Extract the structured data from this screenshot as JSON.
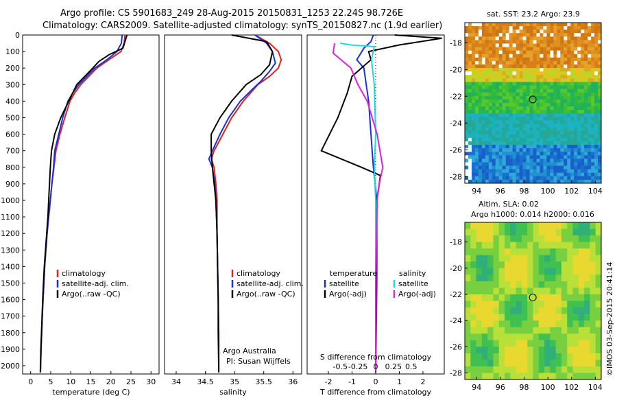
{
  "title_line1": "Argo profile: CS 5901683_249 28-Aug-2015 20150831_1253 22.24S 98.726E",
  "title_line2": "Climatology: CARS2009. Satellite-adjusted climatology: synTS_20150827.nc (1.9d earlier)",
  "watermark": "©IMOS 03-Sep-2015 20:41:14",
  "colors": {
    "climatology": "#e02020",
    "satellite": "#1a2fd8",
    "argo": "#000000",
    "sal_sat": "#20d8e8",
    "sal_argo": "#e020e0"
  },
  "chart_data": [
    {
      "type": "line",
      "id": "temperature",
      "xlabel": "temperature (deg C)",
      "xlim": [
        -2,
        32
      ],
      "ylim": [
        2050,
        0
      ],
      "xticks": [
        "0",
        "5",
        "10",
        "15",
        "20",
        "25",
        "30"
      ],
      "xtick_values": [
        0,
        5,
        10,
        15,
        20,
        25,
        30
      ],
      "yticks": [
        "0",
        "100",
        "200",
        "300",
        "400",
        "500",
        "600",
        "700",
        "800",
        "900",
        "1000",
        "1100",
        "1200",
        "1300",
        "1400",
        "1500",
        "1600",
        "1700",
        "1800",
        "1900",
        "2000"
      ],
      "ytick_values": [
        0,
        100,
        200,
        300,
        400,
        500,
        600,
        700,
        800,
        900,
        1000,
        1100,
        1200,
        1300,
        1400,
        1500,
        1600,
        1700,
        1800,
        1900,
        2000
      ],
      "legend": [
        "climatology",
        "satellite-adj. clim.",
        "Argo(..raw -QC)"
      ],
      "series": [
        {
          "name": "climatology",
          "color_key": "climatology",
          "points": [
            [
              23.5,
              0
            ],
            [
              23.3,
              50
            ],
            [
              22.5,
              100
            ],
            [
              19.5,
              150
            ],
            [
              16.5,
              200
            ],
            [
              14.5,
              250
            ],
            [
              12.5,
              300
            ],
            [
              11,
              350
            ],
            [
              9.8,
              400
            ],
            [
              8.5,
              500
            ],
            [
              7.3,
              600
            ],
            [
              6.3,
              700
            ],
            [
              5.8,
              800
            ],
            [
              5.3,
              900
            ],
            [
              4.9,
              1000
            ],
            [
              4.5,
              1100
            ],
            [
              4.1,
              1200
            ],
            [
              3.8,
              1300
            ],
            [
              3.5,
              1400
            ],
            [
              3.3,
              1500
            ],
            [
              3.1,
              1600
            ],
            [
              2.9,
              1700
            ],
            [
              2.75,
              1800
            ],
            [
              2.6,
              1900
            ],
            [
              2.5,
              2000
            ],
            [
              2.45,
              2040
            ]
          ]
        },
        {
          "name": "satellite-adj. clim.",
          "color_key": "satellite",
          "points": [
            [
              22.8,
              0
            ],
            [
              22.6,
              50
            ],
            [
              21.5,
              100
            ],
            [
              19,
              150
            ],
            [
              16,
              200
            ],
            [
              14,
              250
            ],
            [
              12,
              300
            ],
            [
              10.5,
              350
            ],
            [
              9.3,
              400
            ],
            [
              8,
              500
            ],
            [
              7,
              600
            ],
            [
              6,
              700
            ],
            [
              5.7,
              800
            ],
            [
              5.3,
              900
            ],
            [
              4.9,
              1000
            ],
            [
              4.5,
              1100
            ],
            [
              4.1,
              1200
            ],
            [
              3.8,
              1300
            ],
            [
              3.5,
              1400
            ],
            [
              3.3,
              1500
            ],
            [
              3.1,
              1600
            ],
            [
              2.9,
              1700
            ],
            [
              2.75,
              1800
            ],
            [
              2.6,
              1900
            ],
            [
              2.5,
              2000
            ],
            [
              2.45,
              2040
            ]
          ]
        },
        {
          "name": "Argo(..raw -QC)",
          "color_key": "argo",
          "points": [
            [
              24,
              0
            ],
            [
              23.5,
              40
            ],
            [
              23,
              80
            ],
            [
              19.5,
              120
            ],
            [
              17,
              160
            ],
            [
              15.5,
              200
            ],
            [
              13.5,
              250
            ],
            [
              11.5,
              300
            ],
            [
              9.5,
              400
            ],
            [
              7.5,
              500
            ],
            [
              6,
              600
            ],
            [
              5.2,
              700
            ],
            [
              4.9,
              800
            ],
            [
              4.7,
              900
            ],
            [
              4.5,
              1000
            ],
            [
              4.3,
              1100
            ],
            [
              4.0,
              1200
            ],
            [
              3.7,
              1300
            ],
            [
              3.4,
              1400
            ],
            [
              3.2,
              1500
            ],
            [
              3.0,
              1600
            ],
            [
              2.85,
              1700
            ],
            [
              2.7,
              1800
            ],
            [
              2.55,
              1900
            ],
            [
              2.45,
              2000
            ],
            [
              2.4,
              2040
            ]
          ]
        }
      ]
    },
    {
      "type": "line",
      "id": "salinity",
      "xlabel": "salinity",
      "xlim": [
        33.8,
        36.15
      ],
      "ylim": [
        2050,
        0
      ],
      "xticks": [
        "34",
        "34.5",
        "35",
        "35.5",
        "36"
      ],
      "xtick_values": [
        34,
        34.5,
        35,
        35.5,
        36
      ],
      "legend": [
        "climatology",
        "satellite-adj. clim.",
        "Argo(..raw -QC)"
      ],
      "annotation": [
        "Argo Australia",
        "PI: Susan Wijffels"
      ],
      "series": [
        {
          "name": "climatology",
          "color_key": "climatology",
          "points": [
            [
              35.35,
              0
            ],
            [
              35.6,
              50
            ],
            [
              35.75,
              100
            ],
            [
              35.8,
              150
            ],
            [
              35.75,
              200
            ],
            [
              35.6,
              250
            ],
            [
              35.4,
              300
            ],
            [
              35.15,
              400
            ],
            [
              34.95,
              500
            ],
            [
              34.8,
              600
            ],
            [
              34.65,
              700
            ],
            [
              34.6,
              750
            ],
            [
              34.65,
              800
            ],
            [
              34.68,
              900
            ],
            [
              34.7,
              1000
            ],
            [
              34.7,
              1200
            ],
            [
              34.71,
              1400
            ],
            [
              34.72,
              1600
            ],
            [
              34.73,
              1800
            ],
            [
              34.73,
              2040
            ]
          ]
        },
        {
          "name": "satellite-adj. clim.",
          "color_key": "satellite",
          "points": [
            [
              35.35,
              0
            ],
            [
              35.55,
              50
            ],
            [
              35.65,
              100
            ],
            [
              35.7,
              170
            ],
            [
              35.6,
              220
            ],
            [
              35.45,
              280
            ],
            [
              35.3,
              330
            ],
            [
              35.1,
              400
            ],
            [
              34.9,
              500
            ],
            [
              34.75,
              600
            ],
            [
              34.62,
              700
            ],
            [
              34.56,
              750
            ],
            [
              34.62,
              800
            ],
            [
              34.66,
              900
            ],
            [
              34.68,
              1000
            ],
            [
              34.7,
              1200
            ],
            [
              34.71,
              1400
            ],
            [
              34.72,
              1600
            ],
            [
              34.73,
              1800
            ],
            [
              34.73,
              2040
            ]
          ]
        },
        {
          "name": "Argo(..raw -QC)",
          "color_key": "argo",
          "points": [
            [
              34.95,
              0
            ],
            [
              35.55,
              40
            ],
            [
              35.65,
              100
            ],
            [
              35.6,
              180
            ],
            [
              35.45,
              240
            ],
            [
              35.2,
              300
            ],
            [
              34.95,
              400
            ],
            [
              34.75,
              500
            ],
            [
              34.6,
              600
            ],
            [
              34.6,
              700
            ],
            [
              34.62,
              800
            ],
            [
              34.65,
              900
            ],
            [
              34.68,
              1000
            ],
            [
              34.7,
              1200
            ],
            [
              34.71,
              1400
            ],
            [
              34.72,
              1600
            ],
            [
              34.72,
              1800
            ],
            [
              34.73,
              2040
            ]
          ]
        }
      ]
    },
    {
      "type": "line",
      "id": "difference",
      "xlabel": "T difference from climatology",
      "xlabel_top": "S difference from climatology",
      "xlim": [
        -2.9,
        2.9
      ],
      "ylim": [
        2050,
        0
      ],
      "xticks": [
        "-2",
        "-1",
        "0",
        "1",
        "2"
      ],
      "xtick_values": [
        -2,
        -1,
        0,
        1,
        2
      ],
      "xticks_top": [
        "-0.5",
        "-0.25",
        "0",
        "0.25",
        "0.5"
      ],
      "xtick_top_values": [
        -0.5,
        -0.25,
        0,
        0.25,
        0.5
      ],
      "legend_t_title": "temperature",
      "legend_s_title": "salinity",
      "legend_t": [
        "satellite",
        "Argo(-adj)"
      ],
      "legend_s": [
        "satellite",
        "Argo(-adj)"
      ],
      "series": [
        {
          "name": "satellite",
          "color_key": "satellite",
          "axis": "T",
          "points": [
            [
              -0.1,
              0
            ],
            [
              -0.2,
              40
            ],
            [
              -0.5,
              80
            ],
            [
              -0.8,
              150
            ],
            [
              -0.5,
              200
            ],
            [
              -0.4,
              300
            ],
            [
              -0.3,
              400
            ],
            [
              -0.2,
              600
            ],
            [
              -0.1,
              800
            ],
            [
              0.05,
              1000
            ],
            [
              0.05,
              1500
            ],
            [
              0.0,
              2040
            ]
          ]
        },
        {
          "name": "Argo(-adj)",
          "color_key": "argo",
          "axis": "T",
          "points": [
            [
              0.8,
              0
            ],
            [
              2.8,
              20
            ],
            [
              1.0,
              60
            ],
            [
              -0.3,
              100
            ],
            [
              -0.2,
              150
            ],
            [
              -1.0,
              250
            ],
            [
              -1.2,
              350
            ],
            [
              -1.6,
              500
            ],
            [
              -2.3,
              700
            ],
            [
              -0.6,
              800
            ],
            [
              0.2,
              850
            ],
            [
              0.05,
              1000
            ],
            [
              0.0,
              1500
            ],
            [
              0.0,
              2040
            ]
          ]
        },
        {
          "name": "satellite",
          "color_key": "sal_sat",
          "axis": "S",
          "points": [
            [
              -0.5,
              50
            ],
            [
              -0.35,
              60
            ],
            [
              -0.02,
              70
            ],
            [
              -0.06,
              150
            ],
            [
              -0.02,
              300
            ],
            [
              0,
              600
            ],
            [
              -0.02,
              800
            ],
            [
              0,
              1000
            ],
            [
              0,
              2040
            ]
          ]
        },
        {
          "name": "Argo(-adj)",
          "color_key": "sal_argo",
          "axis": "S",
          "points": [
            [
              -0.58,
              50
            ],
            [
              -0.6,
              110
            ],
            [
              -0.35,
              200
            ],
            [
              -0.25,
              300
            ],
            [
              -0.12,
              400
            ],
            [
              0.02,
              600
            ],
            [
              0.06,
              700
            ],
            [
              0.1,
              800
            ],
            [
              0.05,
              900
            ],
            [
              0.02,
              1000
            ],
            [
              0,
              1500
            ],
            [
              0,
              2040
            ]
          ]
        }
      ]
    },
    {
      "type": "heatmap",
      "id": "sst-map",
      "title": "sat. SST: 23.2  Argo: 23.9",
      "xticks": [
        "94",
        "96",
        "98",
        "100",
        "102",
        "104"
      ],
      "xtick_values": [
        94,
        96,
        98,
        100,
        102,
        104
      ],
      "yticks": [
        "-18",
        "-20",
        "-22",
        "-24",
        "-26",
        "-28"
      ],
      "ytick_values": [
        -18,
        -20,
        -22,
        -24,
        -26,
        -28
      ],
      "xlim": [
        93,
        104.5
      ],
      "ylim": [
        -28.5,
        -16.5
      ],
      "marker": [
        98.726,
        -22.24
      ]
    },
    {
      "type": "heatmap",
      "id": "sla-map",
      "title_line1": "Altim. SLA: 0.02",
      "title_line2": "Argo h1000: 0.014  h2000: 0.016",
      "xticks": [
        "94",
        "96",
        "98",
        "100",
        "102",
        "104"
      ],
      "xtick_values": [
        94,
        96,
        98,
        100,
        102,
        104
      ],
      "yticks": [
        "-18",
        "-20",
        "-22",
        "-24",
        "-26",
        "-28"
      ],
      "ytick_values": [
        -18,
        -20,
        -22,
        -24,
        -26,
        -28
      ],
      "xlim": [
        93,
        104.5
      ],
      "ylim": [
        -28.5,
        -16.5
      ],
      "marker": [
        98.726,
        -22.24
      ]
    }
  ]
}
